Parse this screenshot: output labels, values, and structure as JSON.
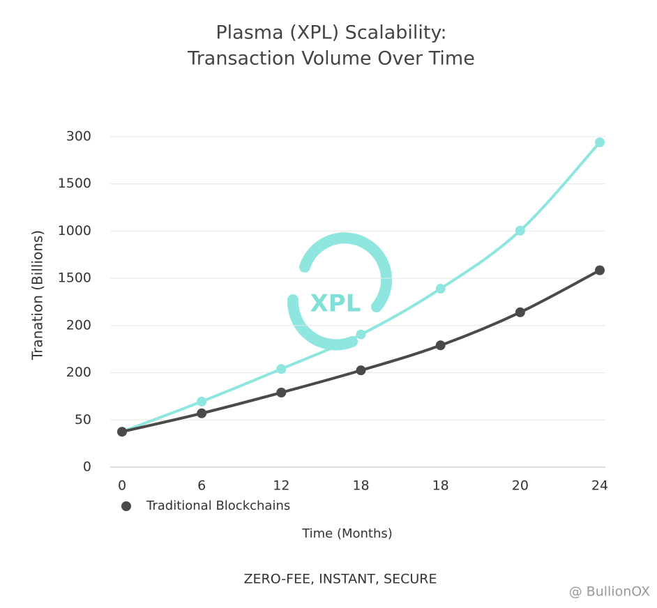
{
  "chart_data": {
    "type": "line",
    "title": [
      "Plasma (XPL) Scalability:",
      "Transaction Volume Over Time"
    ],
    "y_label": "Tranation (Billions)",
    "x_label": "Time (Months)",
    "tagline": "ZERO-FEE, INSTANT, SECURE",
    "logo_text": "XPL",
    "watermark": "@ BullionOX",
    "categories": [
      "0",
      "6",
      "12",
      "18",
      "18",
      "20",
      "24"
    ],
    "series": [
      {
        "color": "#8ee6df",
        "values": [
          0.75,
          1.39,
          2.08,
          2.81,
          3.78,
          5.01,
          6.88
        ]
      },
      {
        "name": "Traditional Blockchains",
        "color": "#4a4a4a",
        "values": [
          0.75,
          1.14,
          1.58,
          2.05,
          2.58,
          3.28,
          4.17
        ]
      }
    ],
    "ylim": [
      0,
      7
    ],
    "yticks": [
      {
        "value": 0,
        "label": "0"
      },
      {
        "value": 1,
        "label": "50"
      },
      {
        "value": 2,
        "label": "200"
      },
      {
        "value": 3,
        "label": "200"
      },
      {
        "value": 4,
        "label": "1500"
      },
      {
        "value": 5,
        "label": "1000"
      },
      {
        "value": 6,
        "label": "1500"
      },
      {
        "value": 7,
        "label": "300"
      }
    ],
    "grid": true,
    "legend": "bottom-left"
  }
}
